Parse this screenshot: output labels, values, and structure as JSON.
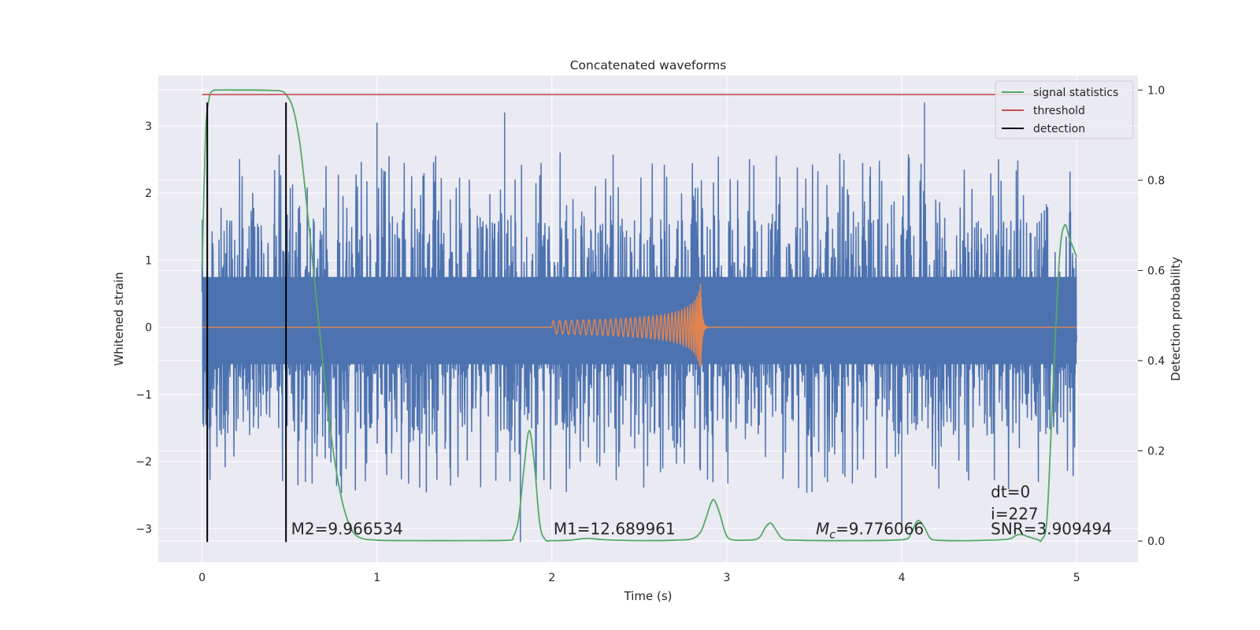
{
  "chart_data": {
    "type": "line",
    "title": "Concatenated waveforms",
    "xlabel": "Time (s)",
    "ylabel": "Whitened strain",
    "y2label": "Detection probability",
    "xlim": [
      -0.25,
      5.35
    ],
    "ylim": [
      -3.5,
      3.75
    ],
    "y2lim": [
      -0.047,
      1.032
    ],
    "xticks": [
      0,
      1,
      2,
      3,
      4,
      5
    ],
    "xtick_labels": [
      "0",
      "1",
      "2",
      "3",
      "4",
      "5"
    ],
    "yticks": [
      -3,
      -2,
      -1,
      0,
      1,
      2,
      3
    ],
    "ytick_labels": [
      "−3",
      "−2",
      "−1",
      "0",
      "1",
      "2",
      "3"
    ],
    "y2ticks": [
      0.0,
      0.2,
      0.4,
      0.6,
      0.8,
      1.0
    ],
    "y2tick_labels": [
      "0.0",
      "0.2",
      "0.4",
      "0.6",
      "0.8",
      "1.0"
    ],
    "grid": true,
    "legend_position": "top-right",
    "colors": {
      "noise": "#4c72b0",
      "waveform": "#dd8452",
      "signal_statistics": "#55a868",
      "threshold": "#c44e52",
      "detection": "#000000",
      "background": "#eaeaf2",
      "grid": "#ffffff"
    },
    "series": [
      {
        "name": "signal statistics",
        "axis": "right",
        "x": [
          0.0,
          0.02,
          0.04,
          0.06,
          0.1,
          0.2,
          0.3,
          0.4,
          0.45,
          0.48,
          0.52,
          0.56,
          0.6,
          0.65,
          0.7,
          0.75,
          0.8,
          0.85,
          0.9,
          1.0,
          1.2,
          1.5,
          1.75,
          1.78,
          1.81,
          1.84,
          1.87,
          1.9,
          1.93,
          1.96,
          2.0,
          2.1,
          2.2,
          2.3,
          2.5,
          2.7,
          2.8,
          2.85,
          2.88,
          2.91,
          2.93,
          2.96,
          2.99,
          3.02,
          3.1,
          3.18,
          3.22,
          3.25,
          3.28,
          3.32,
          3.4,
          3.7,
          4.0,
          4.05,
          4.08,
          4.1,
          4.13,
          4.16,
          4.2,
          4.4,
          4.6,
          4.65,
          4.68,
          4.72,
          4.78,
          4.8,
          4.83,
          4.86,
          4.9,
          4.93,
          4.96,
          5.0
        ],
        "values": [
          0.6,
          0.9,
          0.98,
          0.998,
          1.0,
          1.0,
          1.0,
          0.999,
          0.998,
          0.99,
          0.96,
          0.88,
          0.74,
          0.55,
          0.36,
          0.2,
          0.09,
          0.03,
          0.008,
          0.002,
          0.001,
          0.001,
          0.002,
          0.01,
          0.05,
          0.16,
          0.245,
          0.17,
          0.04,
          0.004,
          0.001,
          0.002,
          0.006,
          0.003,
          0.001,
          0.002,
          0.005,
          0.02,
          0.05,
          0.085,
          0.09,
          0.06,
          0.02,
          0.004,
          0.002,
          0.006,
          0.03,
          0.04,
          0.025,
          0.005,
          0.002,
          0.001,
          0.003,
          0.015,
          0.04,
          0.045,
          0.03,
          0.008,
          0.002,
          0.001,
          0.004,
          0.012,
          0.015,
          0.01,
          0.003,
          0.003,
          0.05,
          0.3,
          0.62,
          0.7,
          0.67,
          0.63
        ]
      },
      {
        "name": "threshold",
        "axis": "right",
        "x": [
          0.0,
          5.0
        ],
        "values": [
          0.99,
          0.99
        ]
      },
      {
        "name": "detection",
        "axis": "left",
        "segments": [
          {
            "x": 0.03,
            "y": [
              -3.2,
              3.35
            ]
          },
          {
            "x": 0.48,
            "y": [
              -3.2,
              3.35
            ]
          }
        ]
      },
      {
        "name": "",
        "kind": "noise",
        "axis": "left",
        "x_range": [
          0.0,
          5.0
        ],
        "typical_extremes": [
          -2.5,
          2.6
        ],
        "core_band": [
          -0.55,
          0.75
        ],
        "peak_spikes": [
          {
            "x": 1.0,
            "y": 3.05
          },
          {
            "x": 1.73,
            "y": 3.2
          },
          {
            "x": 4.13,
            "y": 3.35
          },
          {
            "x": 1.82,
            "y": -3.2
          },
          {
            "x": 4.0,
            "y": -2.95
          }
        ]
      },
      {
        "name": "",
        "kind": "chirp",
        "axis": "left",
        "start": 2.0,
        "peak_time": 2.85,
        "end": 2.9,
        "start_amplitude": 0.1,
        "peak_amplitude": 0.7,
        "start_frequency_hz": 28,
        "peak_frequency_hz": 130
      }
    ],
    "annotations": [
      {
        "label": "M2=9.966534",
        "x": 0.5,
        "y": -3.0
      },
      {
        "label": "M1=12.689961",
        "x": 2.0,
        "y": -3.0
      },
      {
        "label_main": "M",
        "label_sub": "c",
        "label_rest": "=9.776066",
        "x": 3.5,
        "y": -3.0
      },
      {
        "label": "dt=0",
        "x": 4.5,
        "y": -2.45
      },
      {
        "label": "i=227",
        "x": 4.5,
        "y": -2.78
      },
      {
        "label": "SNR=3.909494",
        "x": 4.5,
        "y": -3.0
      }
    ]
  }
}
